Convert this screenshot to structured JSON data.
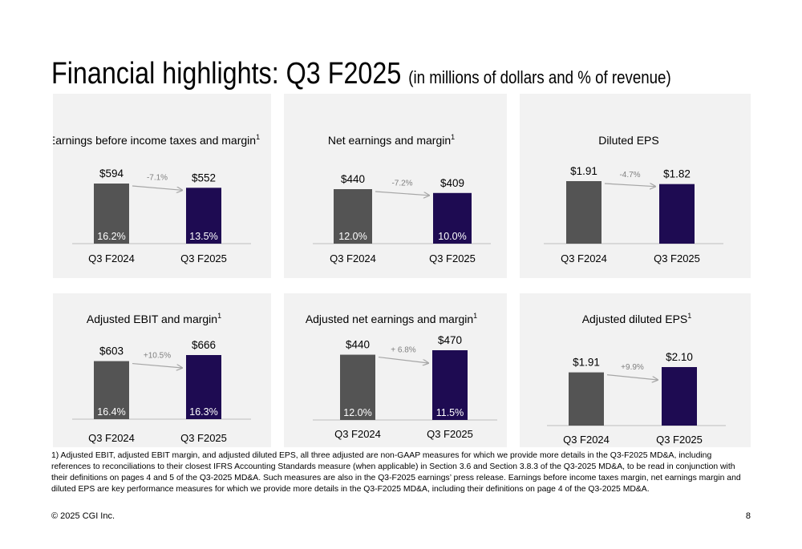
{
  "slide": {
    "title": "Financial highlights: Q3 F2025",
    "subtitle": "(in millions of dollars and % of revenue)",
    "footnote": "1) Adjusted EBIT, adjusted EBIT margin, and adjusted diluted EPS, all three adjusted are non-GAAP measures for which we provide more details in the Q3-F2025 MD&A, including references to reconciliations to their closest IFRS Accounting Standards measure (when applicable) in Section 3.6 and Section 3.8.3 of the Q3-2025 MD&A, to be read in conjunction with their definitions on pages 4 and 5 of the Q3-2025 MD&A. Such measures are also in the Q3-F2025 earnings’ press release. Earnings before income taxes margin, net earnings margin and diluted EPS are key performance measures for which we provide more details in the Q3-F2025 MD&A, including their definitions on page 4 of the Q3-2025 MD&A.",
    "copyright": "© 2025 CGI Inc.",
    "page_number": "8"
  },
  "colors": {
    "prior_bar": "#545454",
    "current_bar": "#1e0b52",
    "arrow": "#a6a6a6",
    "change_text": "#7f7f7f",
    "panel_bg": "#f2f2f2",
    "margin_text": "#ffffff"
  },
  "chart_data": [
    {
      "type": "bar",
      "title": "Earnings before income taxes and margin",
      "title_sup": "1",
      "categories": [
        "Q3 F2024",
        "Q3 F2025"
      ],
      "values": [
        594,
        552
      ],
      "value_labels": [
        "$594",
        "$552"
      ],
      "margins": [
        "16.2%",
        "13.5%"
      ],
      "change": "-7.1%"
    },
    {
      "type": "bar",
      "title": "Net earnings and margin",
      "title_sup": "1",
      "categories": [
        "Q3 F2024",
        "Q3 F2025"
      ],
      "values": [
        440,
        409
      ],
      "value_labels": [
        "$440",
        "$409"
      ],
      "margins": [
        "12.0%",
        "10.0%"
      ],
      "change": "-7.2%"
    },
    {
      "type": "bar",
      "title": "Diluted EPS",
      "title_sup": "",
      "categories": [
        "Q3 F2024",
        "Q3 F2025"
      ],
      "values": [
        1.91,
        1.82
      ],
      "value_labels": [
        "$1.91",
        "$1.82"
      ],
      "margins": [
        "",
        ""
      ],
      "change": "-4.7%"
    },
    {
      "type": "bar",
      "title": "Adjusted EBIT and margin",
      "title_sup": "1",
      "categories": [
        "Q3 F2024",
        "Q3 F2025"
      ],
      "values": [
        603,
        666
      ],
      "value_labels": [
        "$603",
        "$666"
      ],
      "margins": [
        "16.4%",
        "16.3%"
      ],
      "change": "+10.5%"
    },
    {
      "type": "bar",
      "title": "Adjusted net earnings and margin",
      "title_sup": "1",
      "categories": [
        "Q3 F2024",
        "Q3 F2025"
      ],
      "values": [
        440,
        470
      ],
      "value_labels": [
        "$440",
        "$470"
      ],
      "margins": [
        "12.0%",
        "11.5%"
      ],
      "change": "+ 6.8%"
    },
    {
      "type": "bar",
      "title": "Adjusted diluted EPS",
      "title_sup": "1",
      "categories": [
        "Q3 F2024",
        "Q3 F2025"
      ],
      "values": [
        1.91,
        2.1
      ],
      "value_labels": [
        "$1.91",
        "$2.10"
      ],
      "margins": [
        "",
        ""
      ],
      "change": "+9.9%"
    }
  ]
}
